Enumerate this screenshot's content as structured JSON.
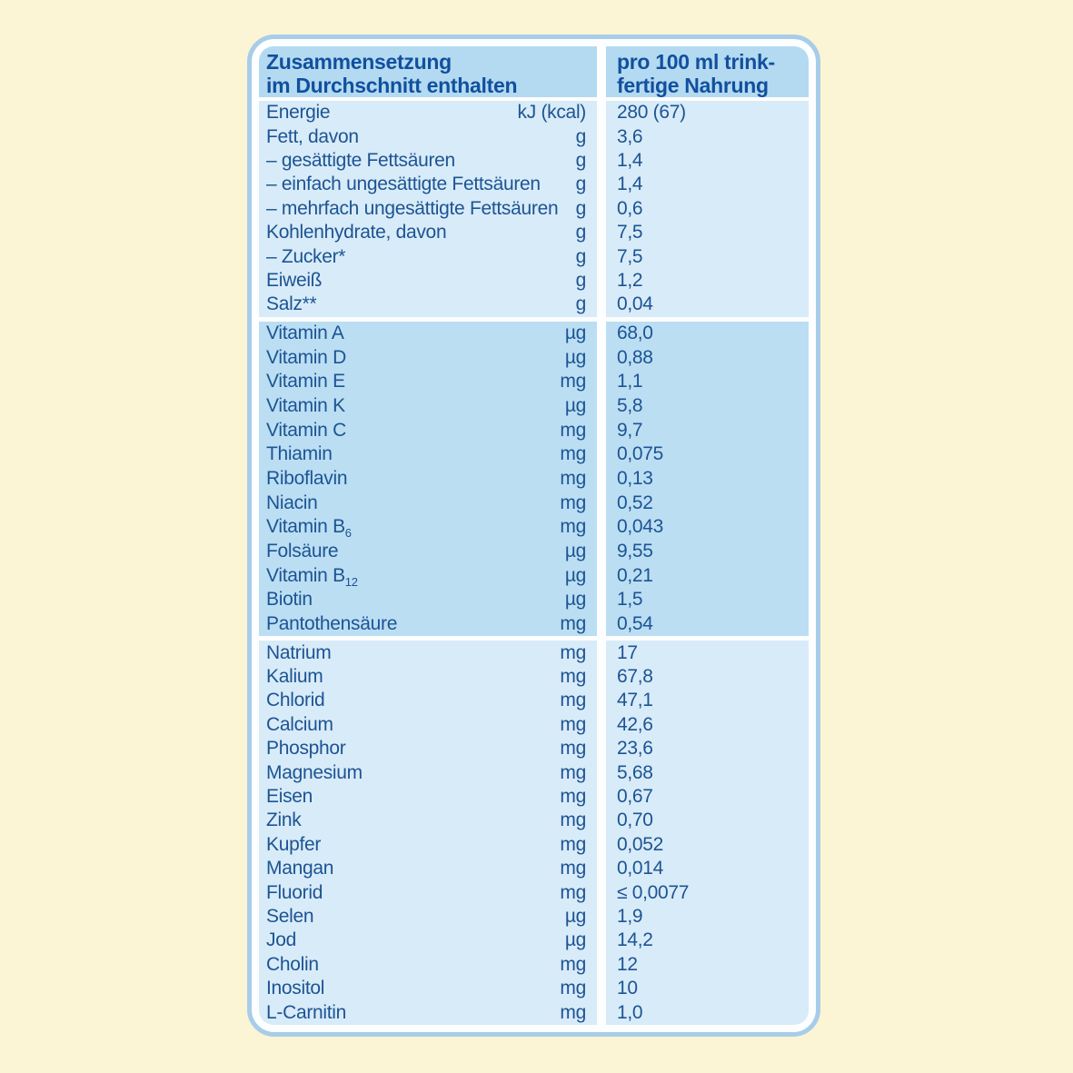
{
  "page": {
    "background": "#FBF4D5"
  },
  "table": {
    "colors": {
      "frame_border": "#A7CDE8",
      "frame_fill": "#FDFEFF",
      "header_bg": "#B4DAF1",
      "section_light_bg": "#D8EBF8",
      "section_medium_bg": "#BBDEF3",
      "header_text": "#11509E",
      "body_text": "#1C5494"
    },
    "header": {
      "left_line1": "Zusammensetzung",
      "left_line2": "im Durchschnitt enthalten",
      "right_line1": "pro 100 ml trink-",
      "right_line2": "fertige Nahrung"
    },
    "sections": [
      {
        "tone": "light",
        "rows": [
          {
            "name": "Energie",
            "unit": "kJ (kcal)",
            "value": "280 (67)"
          },
          {
            "name": "Fett, davon",
            "unit": "g",
            "value": "3,6"
          },
          {
            "name": "– gesättigte Fettsäuren",
            "unit": "g",
            "value": "1,4"
          },
          {
            "name": "– einfach ungesättigte Fettsäuren",
            "unit": "g",
            "value": "1,4"
          },
          {
            "name": "– mehrfach ungesättigte Fettsäuren",
            "unit": "g",
            "value": "0,6"
          },
          {
            "name": "Kohlenhydrate, davon",
            "unit": "g",
            "value": "7,5"
          },
          {
            "name": "– Zucker*",
            "unit": "g",
            "value": "7,5"
          },
          {
            "name": "Eiweiß",
            "unit": "g",
            "value": "1,2"
          },
          {
            "name": "Salz**",
            "unit": "g",
            "value": "0,04"
          }
        ]
      },
      {
        "tone": "medium",
        "rows": [
          {
            "name": "Vitamin A",
            "unit": "µg",
            "value": "68,0"
          },
          {
            "name": "Vitamin D",
            "unit": "µg",
            "value": "0,88"
          },
          {
            "name": "Vitamin E",
            "unit": "mg",
            "value": "1,1"
          },
          {
            "name": "Vitamin K",
            "unit": "µg",
            "value": "5,8"
          },
          {
            "name": "Vitamin C",
            "unit": "mg",
            "value": "9,7"
          },
          {
            "name": "Thiamin",
            "unit": "mg",
            "value": "0,075"
          },
          {
            "name": "Riboflavin",
            "unit": "mg",
            "value": "0,13"
          },
          {
            "name": "Niacin",
            "unit": "mg",
            "value": "0,52"
          },
          {
            "name": "Vitamin B",
            "sub": "6",
            "unit": "mg",
            "value": "0,043"
          },
          {
            "name": "Folsäure",
            "unit": "µg",
            "value": "9,55"
          },
          {
            "name": "Vitamin B",
            "sub": "12",
            "unit": "µg",
            "value": "0,21"
          },
          {
            "name": "Biotin",
            "unit": "µg",
            "value": "1,5"
          },
          {
            "name": "Pantothensäure",
            "unit": "mg",
            "value": "0,54"
          }
        ]
      },
      {
        "tone": "light",
        "rows": [
          {
            "name": "Natrium",
            "unit": "mg",
            "value": "17"
          },
          {
            "name": "Kalium",
            "unit": "mg",
            "value": "67,8"
          },
          {
            "name": "Chlorid",
            "unit": "mg",
            "value": "47,1"
          },
          {
            "name": "Calcium",
            "unit": "mg",
            "value": "42,6"
          },
          {
            "name": "Phosphor",
            "unit": "mg",
            "value": "23,6"
          },
          {
            "name": "Magnesium",
            "unit": "mg",
            "value": "5,68"
          },
          {
            "name": "Eisen",
            "unit": "mg",
            "value": "0,67"
          },
          {
            "name": "Zink",
            "unit": "mg",
            "value": "0,70"
          },
          {
            "name": "Kupfer",
            "unit": "mg",
            "value": "0,052"
          },
          {
            "name": "Mangan",
            "unit": "mg",
            "value": "0,014"
          },
          {
            "name": "Fluorid",
            "unit": "mg",
            "value": "≤ 0,0077"
          },
          {
            "name": "Selen",
            "unit": "µg",
            "value": "1,9"
          },
          {
            "name": "Jod",
            "unit": "µg",
            "value": "14,2"
          },
          {
            "name": "Cholin",
            "unit": "mg",
            "value": "12"
          },
          {
            "name": "Inositol",
            "unit": "mg",
            "value": "10"
          },
          {
            "name": "L-Carnitin",
            "unit": "mg",
            "value": "1,0"
          }
        ]
      }
    ]
  }
}
